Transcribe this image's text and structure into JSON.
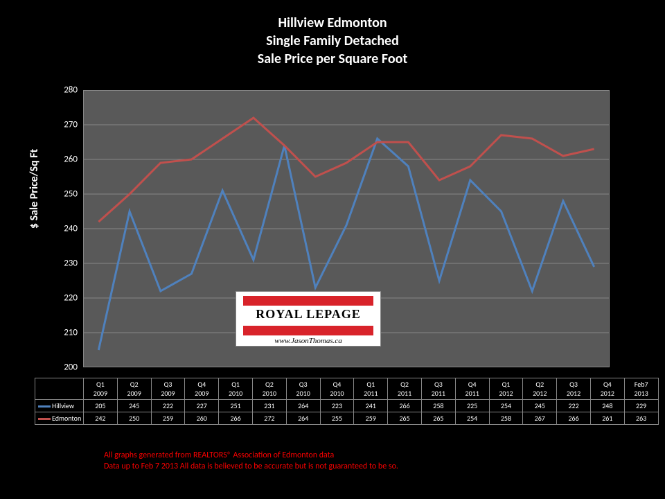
{
  "title": {
    "line1": "Hillview Edmonton",
    "line2": "Single Family Detached",
    "line3": "Sale Price per Square Foot",
    "fontsize": 20,
    "color": "#ffffff"
  },
  "chart": {
    "type": "line",
    "plot_bg": "#595959",
    "outer_bg": "#000000",
    "grid_color": "#878787",
    "ylabel": "$ Sale Price/Sq Ft",
    "ylim": [
      200,
      280
    ],
    "ytick_step": 10,
    "yticks": [
      200,
      210,
      220,
      230,
      240,
      250,
      260,
      270,
      280
    ],
    "categories": [
      "Q1 2009",
      "Q2 2009",
      "Q3 2009",
      "Q4 2009",
      "Q1 2010",
      "Q2 2010",
      "Q3 2010",
      "Q4 2010",
      "Q1 2011",
      "Q2 2011",
      "Q3 2011",
      "Q4 2011",
      "Q1 2012",
      "Q2 2012",
      "Q3 2012",
      "Q4 2012",
      "Feb7 2013"
    ],
    "categories_split": [
      [
        "Q1",
        "2009"
      ],
      [
        "Q2",
        "2009"
      ],
      [
        "Q3",
        "2009"
      ],
      [
        "Q4",
        "2009"
      ],
      [
        "Q1",
        "2010"
      ],
      [
        "Q2",
        "2010"
      ],
      [
        "Q3",
        "2010"
      ],
      [
        "Q4",
        "2010"
      ],
      [
        "Q1",
        "2011"
      ],
      [
        "Q2",
        "2011"
      ],
      [
        "Q3",
        "2011"
      ],
      [
        "Q4",
        "2011"
      ],
      [
        "Q1",
        "2012"
      ],
      [
        "Q2",
        "2012"
      ],
      [
        "Q3",
        "2012"
      ],
      [
        "Q4",
        "2012"
      ],
      [
        "Feb7",
        "2013"
      ]
    ],
    "series": [
      {
        "name": "Hillview",
        "color": "#4f81bd",
        "line_width": 3,
        "values": [
          205,
          245,
          222,
          227,
          251,
          231,
          264,
          223,
          241,
          266,
          258,
          225,
          254,
          245,
          222,
          248,
          229
        ]
      },
      {
        "name": "Edmonton",
        "color": "#c0504d",
        "line_width": 3,
        "values": [
          242,
          250,
          259,
          260,
          266,
          272,
          264,
          255,
          259,
          265,
          265,
          254,
          258,
          267,
          266,
          261,
          263
        ]
      }
    ]
  },
  "logo": {
    "bar_color": "#d8232a",
    "text": "ROYAL LEPAGE",
    "url": "www.JasonThomas.ca"
  },
  "footer": {
    "line1": "All graphs generated from REALTORS® Association of Edmonton data",
    "line2": "Data up to  Feb 7 2013  All data is believed to be accurate but is not guaranteed to be so.",
    "color": "#ff0000"
  }
}
